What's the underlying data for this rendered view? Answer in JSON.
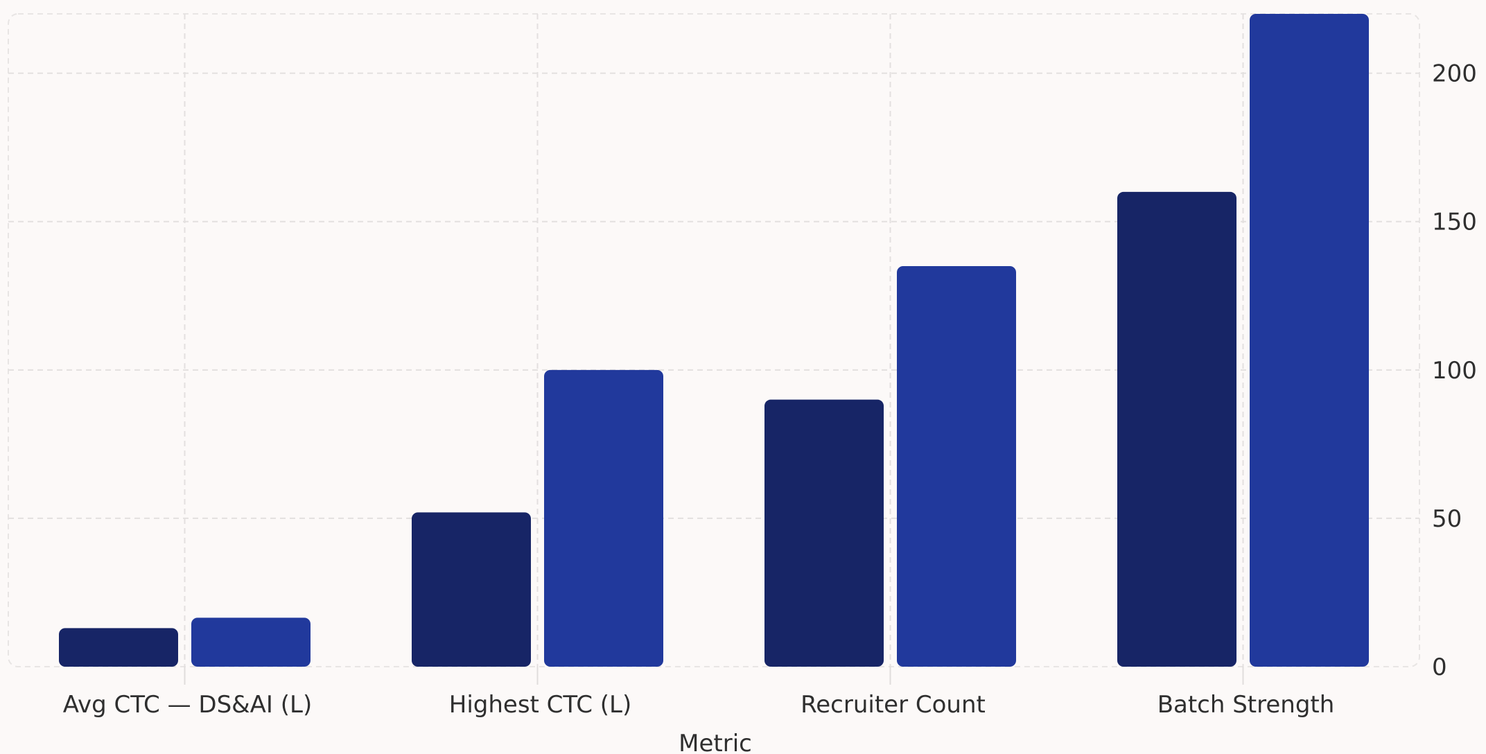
{
  "chart_data": {
    "type": "bar",
    "categories": [
      "Avg CTC — DS&AI (L)",
      "Highest CTC (L)",
      "Recruiter Count",
      "Batch Strength"
    ],
    "series": [
      {
        "values": [
          13,
          52,
          90,
          160
        ],
        "color": "#172566"
      },
      {
        "values": [
          16.5,
          100,
          135,
          220
        ],
        "color": "#21399c"
      }
    ],
    "xlabel": "Metric",
    "ylabel": "",
    "ylim": [
      0,
      220
    ],
    "yticks": [
      0,
      50,
      100,
      150,
      200
    ],
    "y_axis_side": "right",
    "grid": true
  }
}
